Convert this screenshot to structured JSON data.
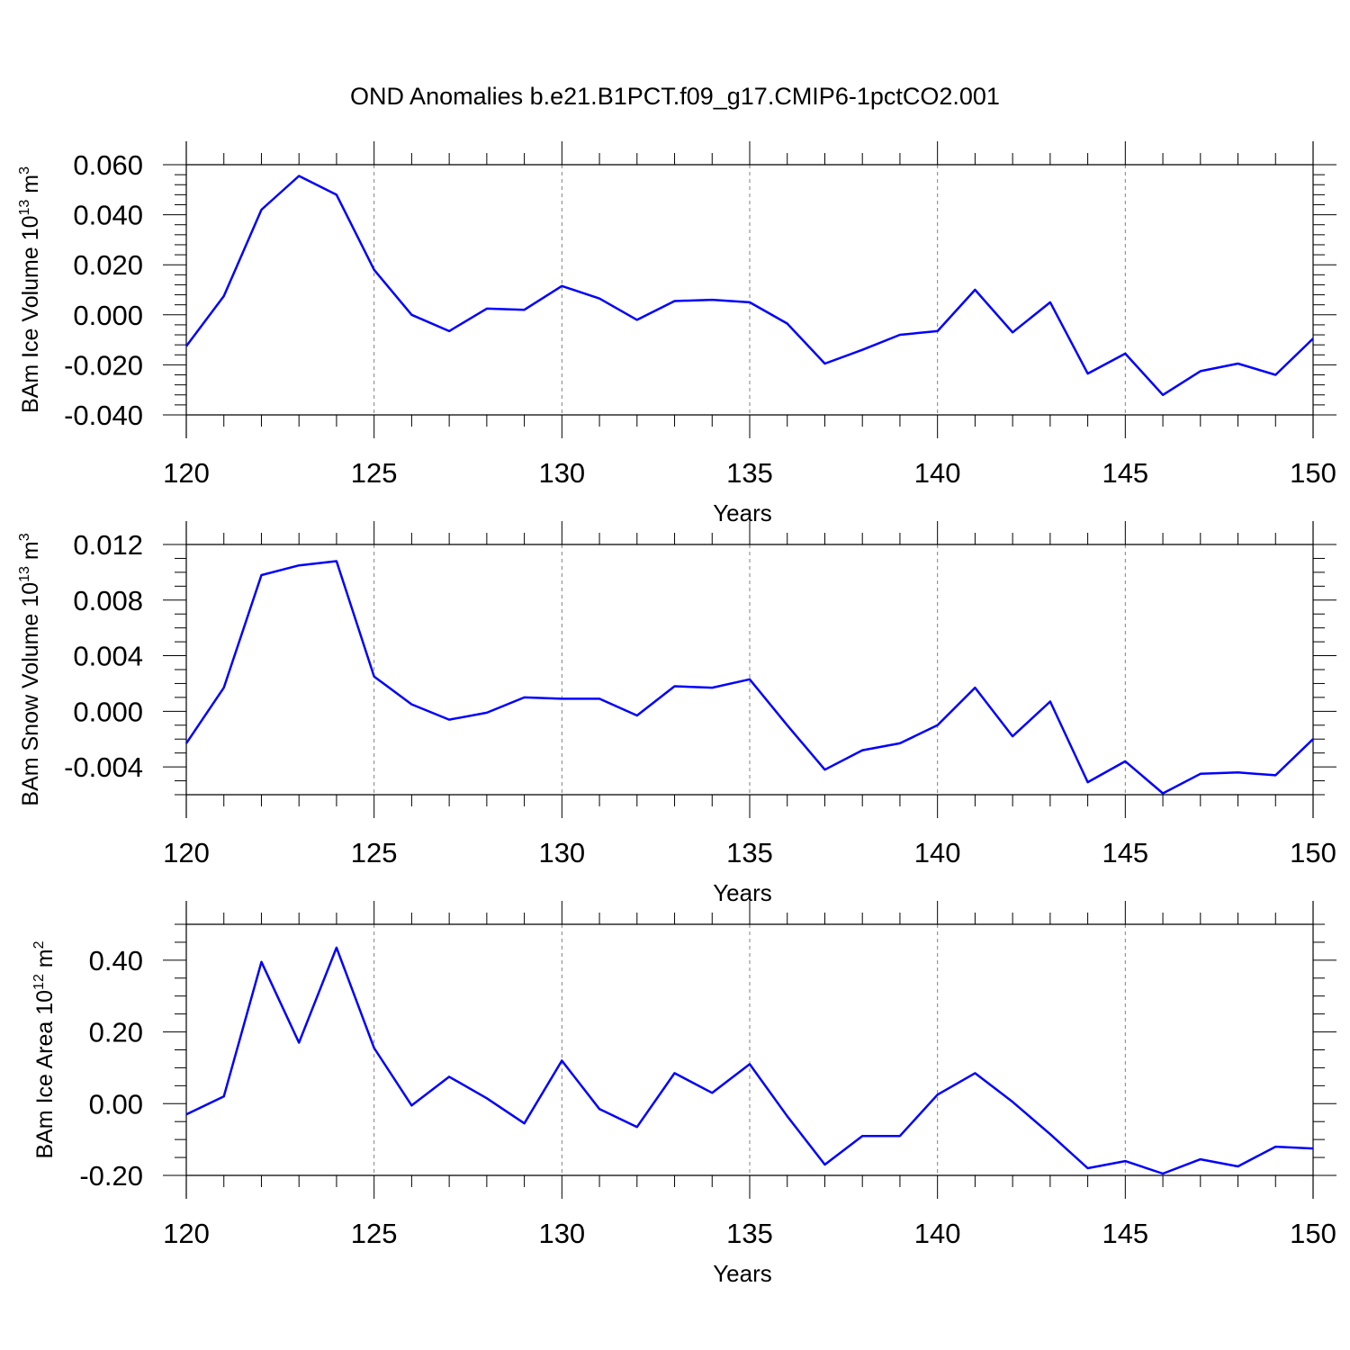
{
  "title": "OND Anomalies b.e21.B1PCT.f09_g17.CMIP6-1pctCO2.001",
  "colors": {
    "line": "#0000ff",
    "axis": "#000000",
    "grid": "#808080"
  },
  "chart_data": [
    {
      "type": "line",
      "ylabel_main": "BAm Ice Volume 10",
      "ylabel_exp": "13",
      "ylabel_unit": " m",
      "ylabel_unit_exp": "3",
      "xlabel": "Years",
      "xlim": [
        120,
        150
      ],
      "ylim": [
        -0.04,
        0.06
      ],
      "yticks": [
        -0.04,
        -0.02,
        0.0,
        0.02,
        0.04,
        0.06
      ],
      "ytick_labels": [
        "-0.040",
        "-0.020",
        "0.000",
        "0.020",
        "0.040",
        "0.060"
      ],
      "yminor_step": 0.004,
      "xticks": [
        120,
        125,
        130,
        135,
        140,
        145,
        150
      ],
      "xtick_labels": [
        "120",
        "125",
        "130",
        "135",
        "140",
        "145",
        "150"
      ],
      "x": [
        120,
        121,
        122,
        123,
        124,
        125,
        126,
        127,
        128,
        129,
        130,
        131,
        132,
        133,
        134,
        135,
        136,
        137,
        138,
        139,
        140,
        141,
        142,
        143,
        144,
        145,
        146,
        147,
        148,
        149,
        150
      ],
      "series": [
        {
          "name": "BAm Ice Volume",
          "values": [
            -0.0125,
            0.0075,
            0.042,
            0.0555,
            0.048,
            0.018,
            0.0,
            -0.0065,
            0.0025,
            0.002,
            0.0115,
            0.0065,
            -0.002,
            0.0055,
            0.006,
            0.005,
            -0.0035,
            -0.0195,
            -0.014,
            -0.008,
            -0.0065,
            0.01,
            -0.007,
            0.005,
            -0.0235,
            -0.0155,
            -0.032,
            -0.0225,
            -0.0195,
            -0.024,
            -0.0095
          ]
        }
      ]
    },
    {
      "type": "line",
      "ylabel_main": "BAm Snow Volume 10",
      "ylabel_exp": "13",
      "ylabel_unit": " m",
      "ylabel_unit_exp": "3",
      "xlabel": "Years",
      "xlim": [
        120,
        150
      ],
      "ylim": [
        -0.006,
        0.012
      ],
      "yticks": [
        -0.004,
        0.0,
        0.004,
        0.008,
        0.012
      ],
      "ytick_labels": [
        "-0.004",
        "0.000",
        "0.004",
        "0.008",
        "0.012"
      ],
      "yminor_step": 0.001,
      "xticks": [
        120,
        125,
        130,
        135,
        140,
        145,
        150
      ],
      "xtick_labels": [
        "120",
        "125",
        "130",
        "135",
        "140",
        "145",
        "150"
      ],
      "x": [
        120,
        121,
        122,
        123,
        124,
        125,
        126,
        127,
        128,
        129,
        130,
        131,
        132,
        133,
        134,
        135,
        136,
        137,
        138,
        139,
        140,
        141,
        142,
        143,
        144,
        145,
        146,
        147,
        148,
        149,
        150
      ],
      "series": [
        {
          "name": "BAm Snow Volume",
          "values": [
            -0.0023,
            0.0017,
            0.0098,
            0.0105,
            0.0108,
            0.0025,
            0.0005,
            -0.0006,
            -0.0001,
            0.001,
            0.0009,
            0.0009,
            -0.0003,
            0.0018,
            0.0017,
            0.0023,
            -0.001,
            -0.0042,
            -0.0028,
            -0.0023,
            -0.001,
            0.0017,
            -0.0018,
            0.0007,
            -0.0051,
            -0.0036,
            -0.0059,
            -0.0045,
            -0.0044,
            -0.0046,
            -0.002
          ]
        }
      ]
    },
    {
      "type": "line",
      "ylabel_main": "BAm Ice Area 10",
      "ylabel_exp": "12",
      "ylabel_unit": " m",
      "ylabel_unit_exp": "2",
      "xlabel": "Years",
      "xlim": [
        120,
        150
      ],
      "ylim": [
        -0.2,
        0.5
      ],
      "yticks": [
        -0.2,
        0.0,
        0.2,
        0.4
      ],
      "ytick_labels": [
        "-0.20",
        "0.00",
        "0.20",
        "0.40"
      ],
      "yminor_step": 0.05,
      "xticks": [
        120,
        125,
        130,
        135,
        140,
        145,
        150
      ],
      "xtick_labels": [
        "120",
        "125",
        "130",
        "135",
        "140",
        "145",
        "150"
      ],
      "x": [
        120,
        121,
        122,
        123,
        124,
        125,
        126,
        127,
        128,
        129,
        130,
        131,
        132,
        133,
        134,
        135,
        136,
        137,
        138,
        139,
        140,
        141,
        142,
        143,
        144,
        145,
        146,
        147,
        148,
        149,
        150
      ],
      "series": [
        {
          "name": "BAm Ice Area",
          "values": [
            -0.03,
            0.02,
            0.395,
            0.17,
            0.435,
            0.155,
            -0.005,
            0.075,
            0.015,
            -0.055,
            0.12,
            -0.015,
            -0.065,
            0.085,
            0.03,
            0.11,
            -0.035,
            -0.17,
            -0.09,
            -0.09,
            0.025,
            0.085,
            0.005,
            -0.085,
            -0.18,
            -0.16,
            -0.195,
            -0.155,
            -0.175,
            -0.12,
            -0.125
          ]
        }
      ]
    }
  ]
}
